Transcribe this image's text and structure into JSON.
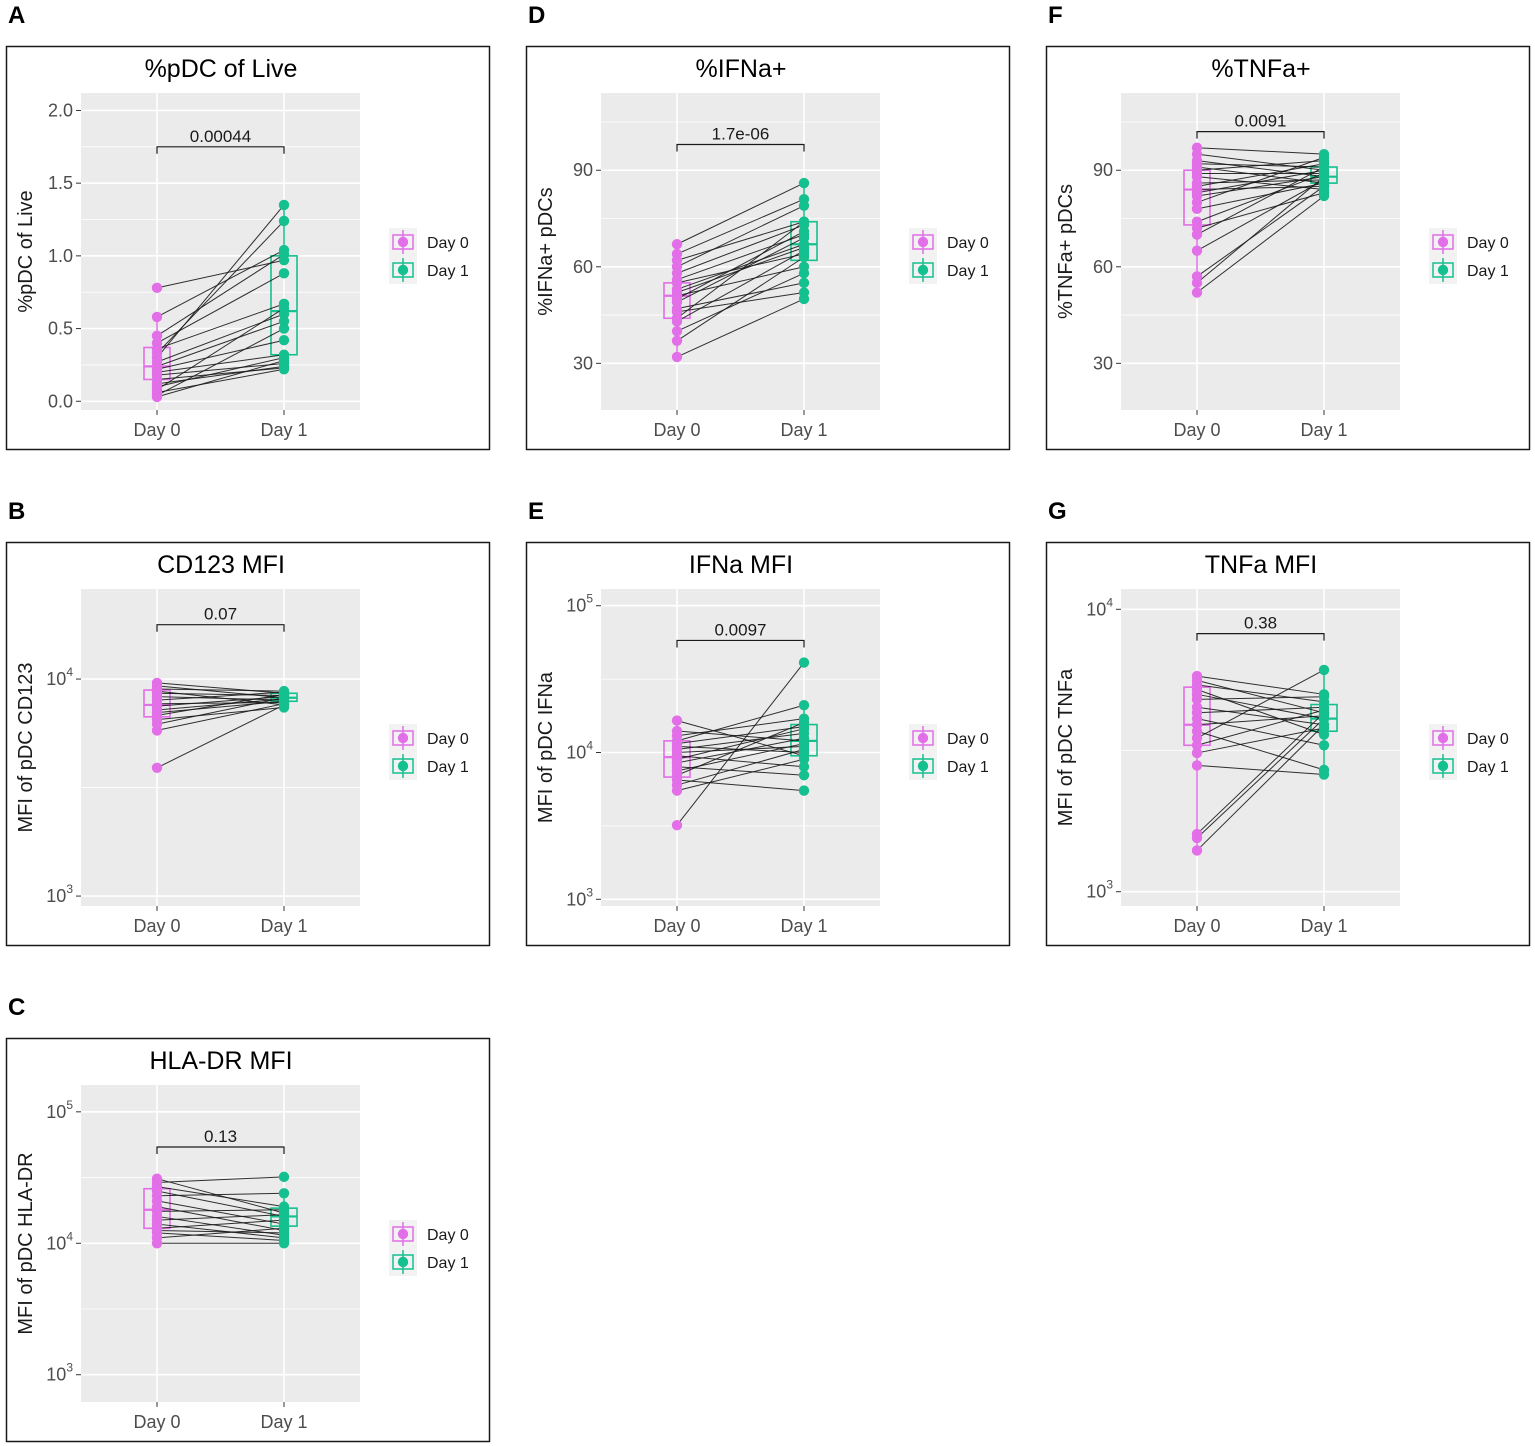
{
  "colors": {
    "day0": "#e26ee8",
    "day1": "#14c08f",
    "panel_bg": "#ebebeb",
    "grid": "#ffffff",
    "pair_line": "#1a1a1a"
  },
  "chart_data": [
    {
      "id": "A",
      "letter": "A",
      "type": "paired-box-scatter",
      "scale": "linear",
      "title": "%pDC of Live",
      "ylabel": "%pDC of Live",
      "xlabel": "",
      "categories": [
        "Day 0",
        "Day 1"
      ],
      "ylim": [
        -0.06,
        2.12
      ],
      "yticks": [
        {
          "v": 0,
          "label": "0.0"
        },
        {
          "v": 0.5,
          "label": "0.5"
        },
        {
          "v": 1.0,
          "label": "1.0"
        },
        {
          "v": 1.5,
          "label": "1.5"
        },
        {
          "v": 2.0,
          "label": "2.0"
        }
      ],
      "pvalue": "0.00044",
      "bracket_y": 1.75,
      "legend": [
        "Day 0",
        "Day 1"
      ],
      "box": {
        "day0": {
          "min": 0.03,
          "q1": 0.15,
          "median": 0.24,
          "q3": 0.37,
          "max": 0.58
        },
        "day1": {
          "min": 0.22,
          "q1": 0.32,
          "median": 0.62,
          "q3": 1.0,
          "max": 1.35
        }
      },
      "pairs": [
        [
          0.78,
          0.97
        ],
        [
          0.58,
          1.04
        ],
        [
          0.45,
          1.01
        ],
        [
          0.4,
          0.88
        ],
        [
          0.36,
          0.67
        ],
        [
          0.33,
          1.24
        ],
        [
          0.3,
          1.35
        ],
        [
          0.27,
          0.6
        ],
        [
          0.24,
          0.55
        ],
        [
          0.22,
          0.42
        ],
        [
          0.2,
          0.32
        ],
        [
          0.18,
          0.26
        ],
        [
          0.15,
          0.23
        ],
        [
          0.12,
          0.24
        ],
        [
          0.1,
          0.3
        ],
        [
          0.08,
          0.64
        ],
        [
          0.06,
          0.22
        ],
        [
          0.04,
          0.5
        ],
        [
          0.03,
          0.28
        ]
      ]
    },
    {
      "id": "B",
      "letter": "B",
      "type": "paired-box-scatter",
      "scale": "log",
      "title": "CD123 MFI",
      "ylabel": "MFI of pDC CD123",
      "xlabel": "",
      "categories": [
        "Day 0",
        "Day 1"
      ],
      "ylim": [
        900,
        26000
      ],
      "yticks": [
        {
          "v": 1000,
          "base": "10",
          "exp": "3"
        },
        {
          "v": 10000,
          "base": "10",
          "exp": "4"
        }
      ],
      "pvalue": "0.07",
      "bracket_y": 17800,
      "legend": [
        "Day 0",
        "Day 1"
      ],
      "box": {
        "day0": {
          "min": 5800,
          "q1": 6700,
          "median": 7600,
          "q3": 8900,
          "max": 9600
        },
        "day1": {
          "min": 7300,
          "q1": 7900,
          "median": 8200,
          "q3": 8600,
          "max": 8900
        }
      },
      "pairs": [
        [
          9600,
          8600
        ],
        [
          9300,
          8200
        ],
        [
          9000,
          8800
        ],
        [
          8800,
          7600
        ],
        [
          8600,
          8400
        ],
        [
          8300,
          8000
        ],
        [
          8000,
          8700
        ],
        [
          7700,
          7800
        ],
        [
          7500,
          8300
        ],
        [
          7200,
          8100
        ],
        [
          7000,
          7900
        ],
        [
          6800,
          8500
        ],
        [
          6500,
          7400
        ],
        [
          6200,
          8200
        ],
        [
          5800,
          7700
        ],
        [
          3900,
          7600
        ]
      ]
    },
    {
      "id": "C",
      "letter": "C",
      "type": "paired-box-scatter",
      "scale": "log",
      "title": "HLA-DR MFI",
      "ylabel": "MFI of pDC HLA-DR",
      "xlabel": "",
      "categories": [
        "Day 0",
        "Day 1"
      ],
      "ylim": [
        620,
        160000
      ],
      "yticks": [
        {
          "v": 1000,
          "base": "10",
          "exp": "3"
        },
        {
          "v": 10000,
          "base": "10",
          "exp": "4"
        },
        {
          "v": 100000,
          "base": "10",
          "exp": "5"
        }
      ],
      "pvalue": "0.13",
      "bracket_y": 54000,
      "legend": [
        "Day 0",
        "Day 1"
      ],
      "box": {
        "day0": {
          "min": 10000,
          "q1": 13000,
          "median": 18000,
          "q3": 26000,
          "max": 31000
        },
        "day1": {
          "min": 10000,
          "q1": 13500,
          "median": 16000,
          "q3": 18500,
          "max": 24000
        }
      },
      "pairs": [
        [
          31000,
          17000
        ],
        [
          29000,
          32000
        ],
        [
          27000,
          19000
        ],
        [
          25000,
          16000
        ],
        [
          23000,
          24000
        ],
        [
          21000,
          14000
        ],
        [
          19000,
          12500
        ],
        [
          17500,
          18000
        ],
        [
          16000,
          11500
        ],
        [
          15000,
          16500
        ],
        [
          14000,
          11000
        ],
        [
          13000,
          15000
        ],
        [
          12500,
          12000
        ],
        [
          12000,
          10500
        ],
        [
          11000,
          13000
        ],
        [
          10000,
          10000
        ]
      ]
    },
    {
      "id": "D",
      "letter": "D",
      "type": "paired-box-scatter",
      "scale": "linear",
      "title": "%IFNa+",
      "ylabel": "%IFNa+ pDCs",
      "xlabel": "",
      "categories": [
        "Day 0",
        "Day 1"
      ],
      "ylim": [
        15.5,
        114
      ],
      "yticks": [
        {
          "v": 30,
          "label": "30"
        },
        {
          "v": 60,
          "label": "60"
        },
        {
          "v": 90,
          "label": "90"
        }
      ],
      "pvalue": "1.7e-06",
      "bracket_y": 98,
      "legend": [
        "Day 0",
        "Day 1"
      ],
      "box": {
        "day0": {
          "min": 32,
          "q1": 44,
          "median": 51,
          "q3": 55,
          "max": 67
        },
        "day1": {
          "min": 50,
          "q1": 62,
          "median": 67,
          "q3": 74,
          "max": 86
        }
      },
      "pairs": [
        [
          67,
          86
        ],
        [
          64,
          81
        ],
        [
          62,
          74
        ],
        [
          60,
          79
        ],
        [
          58,
          73
        ],
        [
          56,
          70
        ],
        [
          55,
          64
        ],
        [
          53,
          67
        ],
        [
          52,
          66
        ],
        [
          51,
          60
        ],
        [
          50,
          71
        ],
        [
          49,
          69
        ],
        [
          47,
          55
        ],
        [
          46,
          52
        ],
        [
          44,
          74
        ],
        [
          43,
          65
        ],
        [
          40,
          58
        ],
        [
          37,
          63
        ],
        [
          32,
          50
        ]
      ]
    },
    {
      "id": "E",
      "letter": "E",
      "type": "paired-box-scatter",
      "scale": "log",
      "title": "IFNa MFI",
      "ylabel": "MFI of pDC IFNa",
      "xlabel": "",
      "categories": [
        "Day 0",
        "Day 1"
      ],
      "ylim": [
        900,
        130000
      ],
      "yticks": [
        {
          "v": 1000,
          "base": "10",
          "exp": "3"
        },
        {
          "v": 10000,
          "base": "10",
          "exp": "4"
        },
        {
          "v": 100000,
          "base": "10",
          "exp": "5"
        }
      ],
      "pvalue": "0.0097",
      "bracket_y": 58000,
      "legend": [
        "Day 0",
        "Day 1"
      ],
      "box": {
        "day0": {
          "min": 5500,
          "q1": 6800,
          "median": 9300,
          "q3": 12000,
          "max": 16500
        },
        "day1": {
          "min": 7000,
          "q1": 9500,
          "median": 12000,
          "q3": 15500,
          "max": 21000
        }
      },
      "pairs": [
        [
          16500,
          9500
        ],
        [
          14000,
          12000
        ],
        [
          13000,
          17000
        ],
        [
          12000,
          21000
        ],
        [
          11500,
          15000
        ],
        [
          11000,
          10000
        ],
        [
          10500,
          13500
        ],
        [
          10000,
          11000
        ],
        [
          9500,
          8000
        ],
        [
          9000,
          14500
        ],
        [
          8500,
          12500
        ],
        [
          8000,
          7000
        ],
        [
          7500,
          11500
        ],
        [
          7000,
          16000
        ],
        [
          6500,
          5500
        ],
        [
          6000,
          10500
        ],
        [
          5500,
          9000
        ],
        [
          3200,
          41000
        ]
      ]
    },
    {
      "id": "F",
      "letter": "F",
      "type": "paired-box-scatter",
      "scale": "linear",
      "title": "%TNFa+",
      "ylabel": "%TNFa+ pDCs",
      "xlabel": "",
      "categories": [
        "Day 0",
        "Day 1"
      ],
      "ylim": [
        15.5,
        114
      ],
      "yticks": [
        {
          "v": 30,
          "label": "30"
        },
        {
          "v": 60,
          "label": "60"
        },
        {
          "v": 90,
          "label": "90"
        }
      ],
      "pvalue": "0.0091",
      "bracket_y": 102,
      "legend": [
        "Day 0",
        "Day 1"
      ],
      "box": {
        "day0": {
          "min": 52,
          "q1": 73,
          "median": 84,
          "q3": 90,
          "max": 97
        },
        "day1": {
          "min": 82,
          "q1": 86,
          "median": 88,
          "q3": 91,
          "max": 95
        }
      },
      "pairs": [
        [
          97,
          95
        ],
        [
          95,
          90
        ],
        [
          93,
          88
        ],
        [
          92,
          91
        ],
        [
          91,
          86
        ],
        [
          90,
          93
        ],
        [
          89,
          89
        ],
        [
          88,
          84
        ],
        [
          86,
          87
        ],
        [
          85,
          92
        ],
        [
          84,
          85
        ],
        [
          83,
          90
        ],
        [
          82,
          88
        ],
        [
          80,
          94
        ],
        [
          78,
          86
        ],
        [
          74,
          89
        ],
        [
          72,
          83
        ],
        [
          70,
          91
        ],
        [
          65,
          87
        ],
        [
          57,
          85
        ],
        [
          55,
          88
        ],
        [
          52,
          82
        ]
      ]
    },
    {
      "id": "G",
      "letter": "G",
      "type": "paired-box-scatter",
      "scale": "log",
      "title": "TNFa MFI",
      "ylabel": "MFI of pDC TNFa",
      "xlabel": "",
      "categories": [
        "Day 0",
        "Day 1"
      ],
      "ylim": [
        890,
        11800
      ],
      "yticks": [
        {
          "v": 1000,
          "base": "10",
          "exp": "3"
        },
        {
          "v": 10000,
          "base": "10",
          "exp": "4"
        }
      ],
      "pvalue": "0.38",
      "bracket_y": 8200,
      "legend": [
        "Day 0",
        "Day 1"
      ],
      "box": {
        "day0": {
          "min": 1400,
          "q1": 3300,
          "median": 3900,
          "q3": 5300,
          "max": 5800
        },
        "day1": {
          "min": 2600,
          "q1": 3700,
          "median": 4100,
          "q3": 4600,
          "max": 6100
        }
      },
      "pairs": [
        [
          5800,
          5000
        ],
        [
          5600,
          4300
        ],
        [
          5400,
          4700
        ],
        [
          5200,
          3600
        ],
        [
          5000,
          4100
        ],
        [
          4800,
          4900
        ],
        [
          4500,
          3900
        ],
        [
          4300,
          4500
        ],
        [
          4100,
          3300
        ],
        [
          3900,
          4200
        ],
        [
          3700,
          2700
        ],
        [
          3500,
          6100
        ],
        [
          3300,
          4400
        ],
        [
          3100,
          3800
        ],
        [
          2800,
          2600
        ],
        [
          1600,
          4300
        ],
        [
          1550,
          4100
        ],
        [
          1400,
          3900
        ]
      ]
    }
  ]
}
